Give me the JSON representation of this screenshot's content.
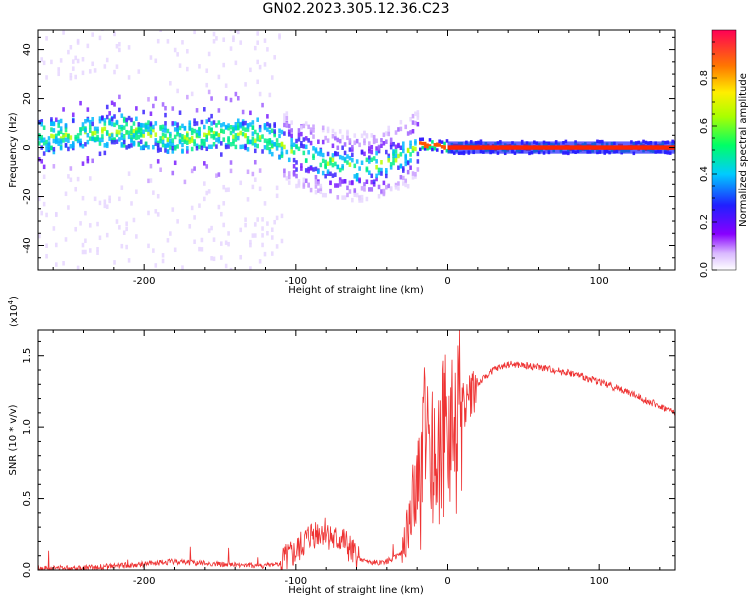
{
  "title": "GN02.2023.305.12.36.C23",
  "colors": {
    "snr_line": "#ee3333",
    "background": "#ffffff"
  },
  "chart_data": [
    {
      "type": "heatmap",
      "xlabel": "Height of straight line (km)",
      "ylabel": "Frequency (Hz)",
      "xlim": [
        -270,
        150
      ],
      "ylim": [
        -50,
        48
      ],
      "xticks": [
        -200,
        -100,
        0,
        100
      ],
      "yticks": [
        -40,
        -20,
        0,
        20,
        40
      ],
      "colorbar": {
        "label": "Normalized spectral amplitude",
        "range": [
          0,
          1
        ],
        "ticks": [
          0.0,
          0.2,
          0.4,
          0.6,
          0.8
        ],
        "tick_labels": [
          "0.0",
          "0.2",
          "0.4",
          "0.6",
          "0.8"
        ],
        "colormap": "rainbow (white-violet to red)"
      },
      "ridge": {
        "description": "dominant frequency ridge",
        "x": [
          -260,
          -220,
          -180,
          -150,
          -120,
          -100,
          -80,
          -60,
          -45,
          -30,
          -20,
          -10,
          0,
          20,
          60,
          100,
          150
        ],
        "y": [
          5,
          7,
          4,
          6,
          4,
          -2,
          -6,
          -8,
          -7,
          -3,
          1,
          1,
          0,
          0,
          0,
          0,
          0
        ]
      }
    },
    {
      "type": "line",
      "xlabel": "Height of straight line (km)",
      "ylabel": "SNR (10 * v/v)",
      "y_multiplier": "(x10",
      "y_exponent": "4",
      "y_multiplier_close": ")",
      "xlim": [
        -270,
        150
      ],
      "ylim": [
        0,
        1.68
      ],
      "xticks": [
        -200,
        -100,
        0,
        100
      ],
      "yticks": [
        0.0,
        0.5,
        1.0,
        1.5
      ],
      "ytick_labels": [
        "0.0",
        "0.5",
        "1.0",
        "1.5"
      ],
      "series": [
        {
          "x": [
            -270,
            -230,
            -200,
            -180,
            -150,
            -120,
            -110,
            -100,
            -90,
            -80,
            -75,
            -70,
            -60,
            -50,
            -40,
            -30,
            -25,
            -20,
            -15,
            -10,
            -5,
            0,
            5,
            10,
            20,
            30,
            40,
            60,
            80,
            100,
            120,
            150
          ],
          "values": [
            0.01,
            0.02,
            0.04,
            0.06,
            0.04,
            0.03,
            0.05,
            0.12,
            0.25,
            0.28,
            0.2,
            0.22,
            0.08,
            0.05,
            0.06,
            0.12,
            0.35,
            0.6,
            0.9,
            0.75,
            0.85,
            0.95,
            1.05,
            1.15,
            1.3,
            1.4,
            1.44,
            1.42,
            1.38,
            1.32,
            1.24,
            1.1
          ]
        }
      ]
    }
  ]
}
